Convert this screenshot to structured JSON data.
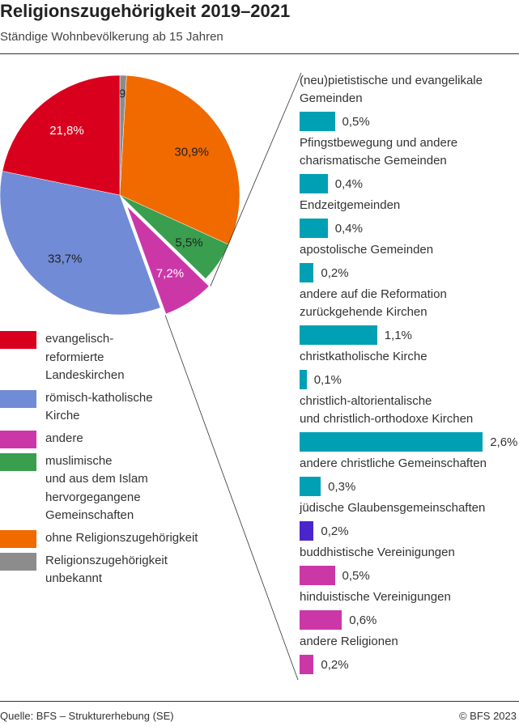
{
  "title": "Religionszugehörigkeit 2019–2021",
  "subtitle": "Ständige Wohnbevölkerung ab 15 Jahren",
  "footer": {
    "source": "Quelle: BFS – Strukturerhebung (SE)",
    "copyright": "© BFS 2023"
  },
  "chart_data": [
    {
      "type": "pie",
      "unit": "%",
      "exploded_slice": "andere",
      "slices": [
        {
          "name": "Religionszugehörigkeit\nunbekannt",
          "value": 0.9,
          "label": "0,9%",
          "color": "#8c8c8c"
        },
        {
          "name": "ohne Religionszugehörigkeit",
          "value": 30.9,
          "label": "30,9%",
          "color": "#f06a00"
        },
        {
          "name": "muslimische\nund aus dem Islam\nhervorgegangene\nGemeinschaften",
          "value": 5.5,
          "label": "5,5%",
          "color": "#3a9e4f"
        },
        {
          "name": "andere",
          "value": 7.2,
          "label": "7,2%",
          "color": "#cc37a8"
        },
        {
          "name": "römisch-katholische\nKirche",
          "value": 33.7,
          "label": "33,7%",
          "color": "#718bd6"
        },
        {
          "name": "evangelisch-\nreformierte\nLandeskirchen",
          "value": 21.8,
          "label": "21,8%",
          "color": "#d9001e"
        }
      ],
      "legend_order": [
        5,
        4,
        3,
        2,
        1,
        0
      ]
    },
    {
      "type": "bar",
      "orientation": "horizontal",
      "unit": "%",
      "breakdown_of": "andere",
      "bars": [
        {
          "name": "(neu)pietistische und evangelikale\nGemeinden",
          "value": 0.5,
          "label": "0,5%",
          "color": "#00a0b4"
        },
        {
          "name": "Pfingstbewegung und andere\ncharismatische Gemeinden",
          "value": 0.4,
          "label": "0,4%",
          "color": "#00a0b4"
        },
        {
          "name": "Endzeitgemeinden",
          "value": 0.4,
          "label": "0,4%",
          "color": "#00a0b4"
        },
        {
          "name": "apostolische Gemeinden",
          "value": 0.2,
          "label": "0,2%",
          "color": "#00a0b4"
        },
        {
          "name": "andere auf die Reformation\nzurückgehende Kirchen",
          "value": 1.1,
          "label": "1,1%",
          "color": "#00a0b4"
        },
        {
          "name": "christkatholische Kirche",
          "value": 0.1,
          "label": "0,1%",
          "color": "#00a0b4"
        },
        {
          "name": "christlich-altorientalische\nund christlich-orthodoxe Kirchen",
          "value": 2.6,
          "label": "2,6%",
          "color": "#00a0b4"
        },
        {
          "name": "andere christliche Gemeinschaften",
          "value": 0.3,
          "label": "0,3%",
          "color": "#00a0b4"
        },
        {
          "name": "jüdische Glaubensgemeinschaften",
          "value": 0.2,
          "label": "0,2%",
          "color": "#4b25cc"
        },
        {
          "name": "buddhistische Vereinigungen",
          "value": 0.5,
          "label": "0,5%",
          "color": "#cc37a8"
        },
        {
          "name": "hinduistische Vereinigungen",
          "value": 0.6,
          "label": "0,6%",
          "color": "#cc37a8"
        },
        {
          "name": "andere Religionen",
          "value": 0.2,
          "label": "0,2%",
          "color": "#cc37a8"
        }
      ]
    }
  ]
}
